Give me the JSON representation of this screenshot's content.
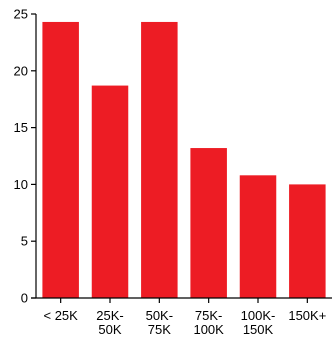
{
  "chart_data": {
    "type": "bar",
    "title": "",
    "xlabel": "",
    "ylabel": "",
    "categories": [
      [
        "< 25K"
      ],
      [
        "25K-",
        "50K"
      ],
      [
        "50K-",
        "75K"
      ],
      [
        "75K-",
        "100K"
      ],
      [
        "100K-",
        "150K"
      ],
      [
        "150K+"
      ]
    ],
    "values": [
      24.3,
      18.7,
      24.3,
      13.2,
      10.8,
      10.0
    ],
    "ylim": [
      0,
      25
    ],
    "yticks": [
      0,
      5,
      10,
      15,
      20,
      25
    ],
    "grid": false,
    "legend": "none",
    "bar_color": "#ED1C24",
    "axis_color": "#000000"
  }
}
